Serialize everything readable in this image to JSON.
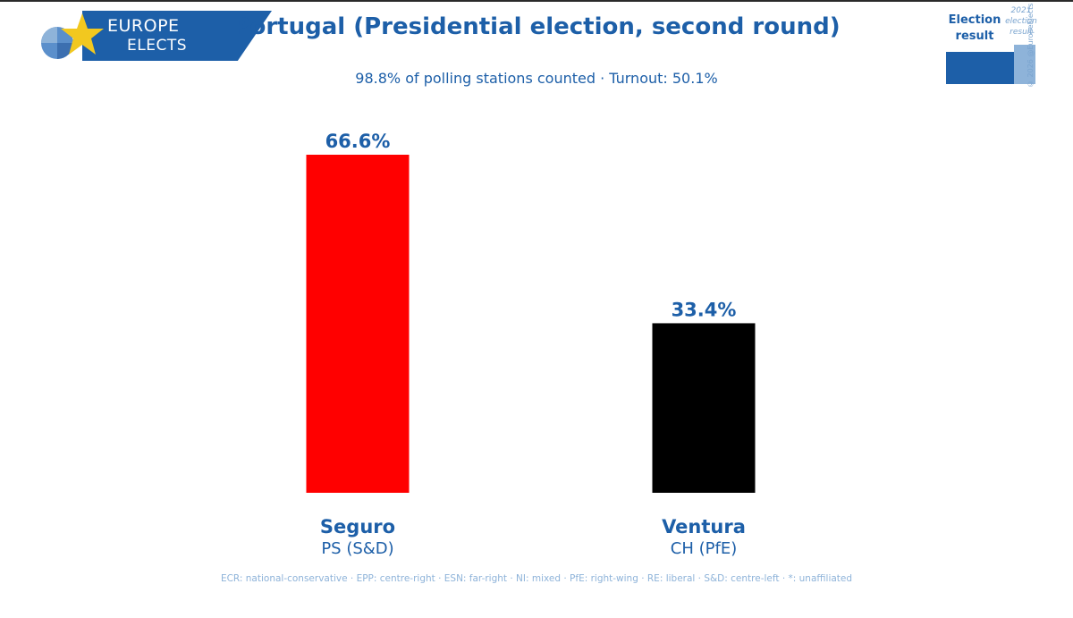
{
  "brand": {
    "line1": "EUROPE",
    "line2": "ELECTS"
  },
  "header": {
    "title": "Portugal (Presidential election, second round)",
    "subtitle": "98.8% of polling stations counted · Turnout: 50.1%"
  },
  "legend": {
    "current_label": "Election result",
    "previous_label": "2021 election result",
    "copyright": "© 2026 @EuropeElects"
  },
  "chart_data": {
    "type": "bar",
    "title": "Portugal (Presidential election, second round)",
    "subtitle": "98.8% of polling stations counted · Turnout: 50.1%",
    "categories": [
      "Seguro",
      "Ventura"
    ],
    "parties": [
      "PS (S&D)",
      "CH (PfE)"
    ],
    "values": [
      66.6,
      33.4
    ],
    "value_labels": [
      "66.6%",
      "33.4%"
    ],
    "colors": [
      "#ff0000",
      "#000000"
    ],
    "ylim": [
      0,
      66.6
    ],
    "grid": false
  },
  "footnote": "ECR: national-conservative · EPP: centre-right · ESN: far-right · NI: mixed · PfE: right-wing · RE: liberal · S&D: centre-left · *: unaffiliated",
  "colors": {
    "accent": "#1d5fa8",
    "accent_light": "#8eb3d9"
  }
}
